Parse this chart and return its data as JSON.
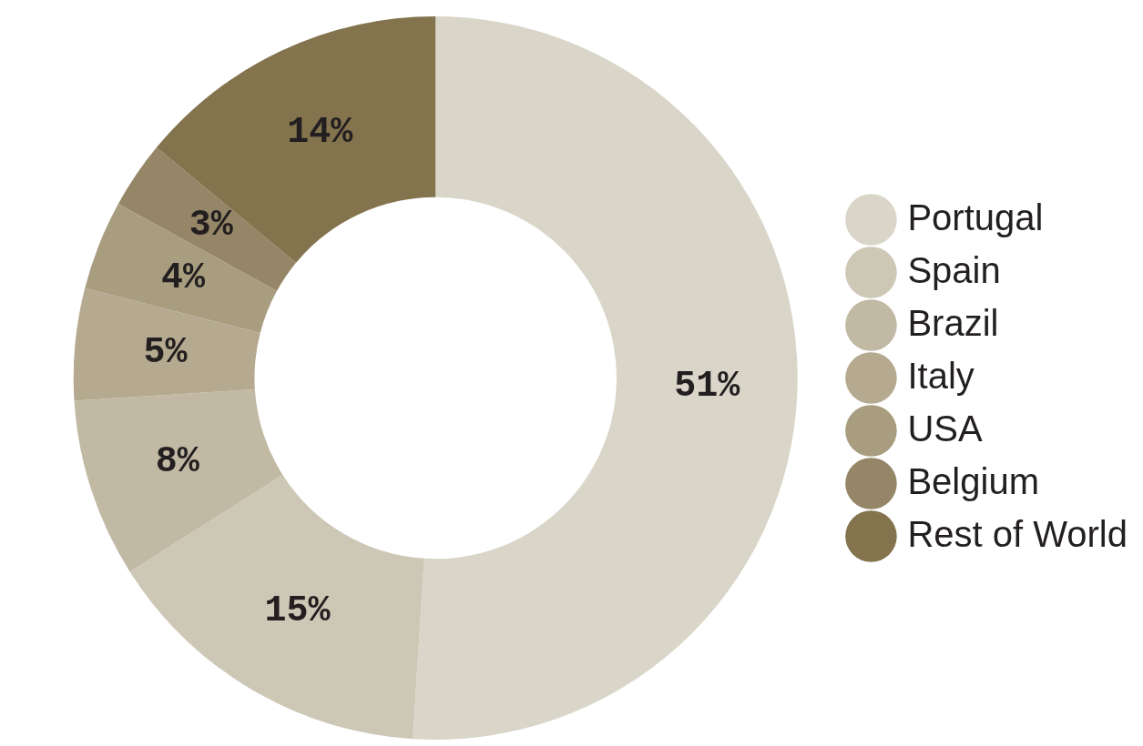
{
  "chart_data": {
    "type": "donut",
    "categories": [
      "Portugal",
      "Spain",
      "Brazil",
      "Italy",
      "USA",
      "Belgium",
      "Rest of World"
    ],
    "values": [
      51,
      15,
      8,
      5,
      4,
      3,
      14
    ],
    "colors": [
      "#d9d6c9",
      "#cdc7b6",
      "#c1b9a4",
      "#b5aa90",
      "#a99d7f",
      "#948666",
      "#83744e"
    ],
    "value_labels": [
      "51%",
      "15%",
      "8%",
      "5%",
      "4%",
      "3%",
      "14%"
    ],
    "legend": "right"
  }
}
